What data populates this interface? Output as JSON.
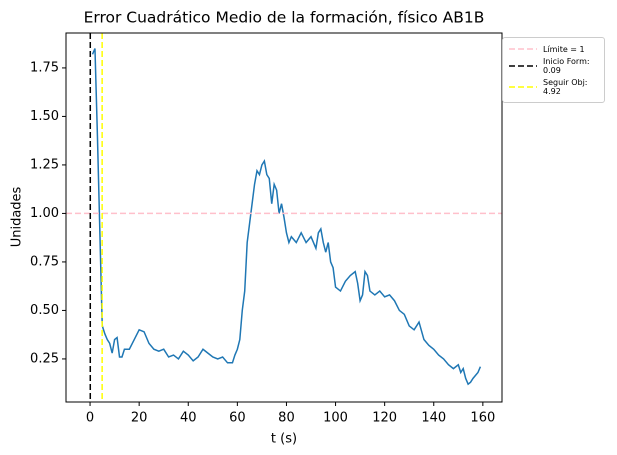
{
  "chart_data": {
    "type": "line",
    "title": "Error Cuadrático Medio de la formación, físico AB1B",
    "xlabel": "t (s)",
    "ylabel": "Unidades",
    "xlim": [
      -9.8,
      167.8
    ],
    "ylim": [
      0.028,
      1.93
    ],
    "xticks": [
      0,
      20,
      40,
      60,
      80,
      100,
      120,
      140,
      160
    ],
    "yticks": [
      {
        "value": 0.25,
        "label": "0.25"
      },
      {
        "value": 0.5,
        "label": "0.50"
      },
      0.75,
      {
        "value": 1.0,
        "label": "1.00"
      },
      1.25,
      {
        "value": 1.5,
        "label": "1.50"
      },
      1.75
    ],
    "series": [
      {
        "color": "#1f77b4",
        "x": [
          1,
          2,
          3,
          4,
          4.9,
          5,
          6,
          7,
          8,
          9,
          10,
          11,
          12,
          13,
          14,
          16,
          18,
          20,
          22,
          24,
          26,
          28,
          30,
          32,
          34,
          36,
          38,
          40,
          42,
          44,
          46,
          48,
          50,
          52,
          54,
          56,
          58,
          59,
          60,
          61,
          62,
          63,
          64,
          65,
          66,
          67,
          68,
          69,
          70,
          71,
          72,
          73,
          74,
          75,
          76,
          77,
          78,
          79,
          80,
          81,
          82,
          84,
          86,
          88,
          90,
          92,
          93,
          94,
          95,
          96,
          97,
          98,
          99,
          100,
          102,
          104,
          106,
          108,
          109,
          110,
          111,
          112,
          113,
          114,
          116,
          118,
          120,
          122,
          124,
          126,
          128,
          130,
          132,
          134,
          136,
          138,
          140,
          142,
          144,
          146,
          148,
          150,
          151,
          152,
          153,
          154,
          155,
          156,
          158,
          159
        ],
        "values": [
          1.82,
          1.85,
          1.4,
          0.9,
          0.45,
          0.42,
          0.38,
          0.35,
          0.33,
          0.28,
          0.35,
          0.36,
          0.26,
          0.26,
          0.3,
          0.3,
          0.35,
          0.4,
          0.39,
          0.33,
          0.3,
          0.29,
          0.3,
          0.26,
          0.27,
          0.25,
          0.29,
          0.27,
          0.24,
          0.26,
          0.3,
          0.28,
          0.26,
          0.25,
          0.26,
          0.23,
          0.23,
          0.27,
          0.3,
          0.35,
          0.5,
          0.6,
          0.85,
          0.95,
          1.05,
          1.15,
          1.22,
          1.2,
          1.25,
          1.27,
          1.2,
          1.18,
          1.05,
          1.15,
          1.12,
          1.0,
          1.05,
          0.98,
          0.9,
          0.85,
          0.88,
          0.85,
          0.9,
          0.85,
          0.88,
          0.82,
          0.9,
          0.92,
          0.85,
          0.8,
          0.85,
          0.75,
          0.72,
          0.62,
          0.6,
          0.65,
          0.68,
          0.7,
          0.64,
          0.55,
          0.58,
          0.7,
          0.68,
          0.6,
          0.58,
          0.6,
          0.57,
          0.58,
          0.55,
          0.5,
          0.48,
          0.42,
          0.4,
          0.44,
          0.35,
          0.32,
          0.3,
          0.27,
          0.25,
          0.22,
          0.2,
          0.22,
          0.18,
          0.2,
          0.15,
          0.12,
          0.13,
          0.15,
          0.18,
          0.21
        ]
      }
    ],
    "hlines": [
      {
        "value": 1,
        "label": "Límite = 1",
        "color": "pink"
      }
    ],
    "vlines": [
      {
        "value": 0.09,
        "label": "Inicio Form:\n 0.09",
        "color": "black"
      },
      {
        "value": 4.92,
        "label": "Seguir Obj:\n 4.92",
        "color": "yellow"
      }
    ]
  }
}
